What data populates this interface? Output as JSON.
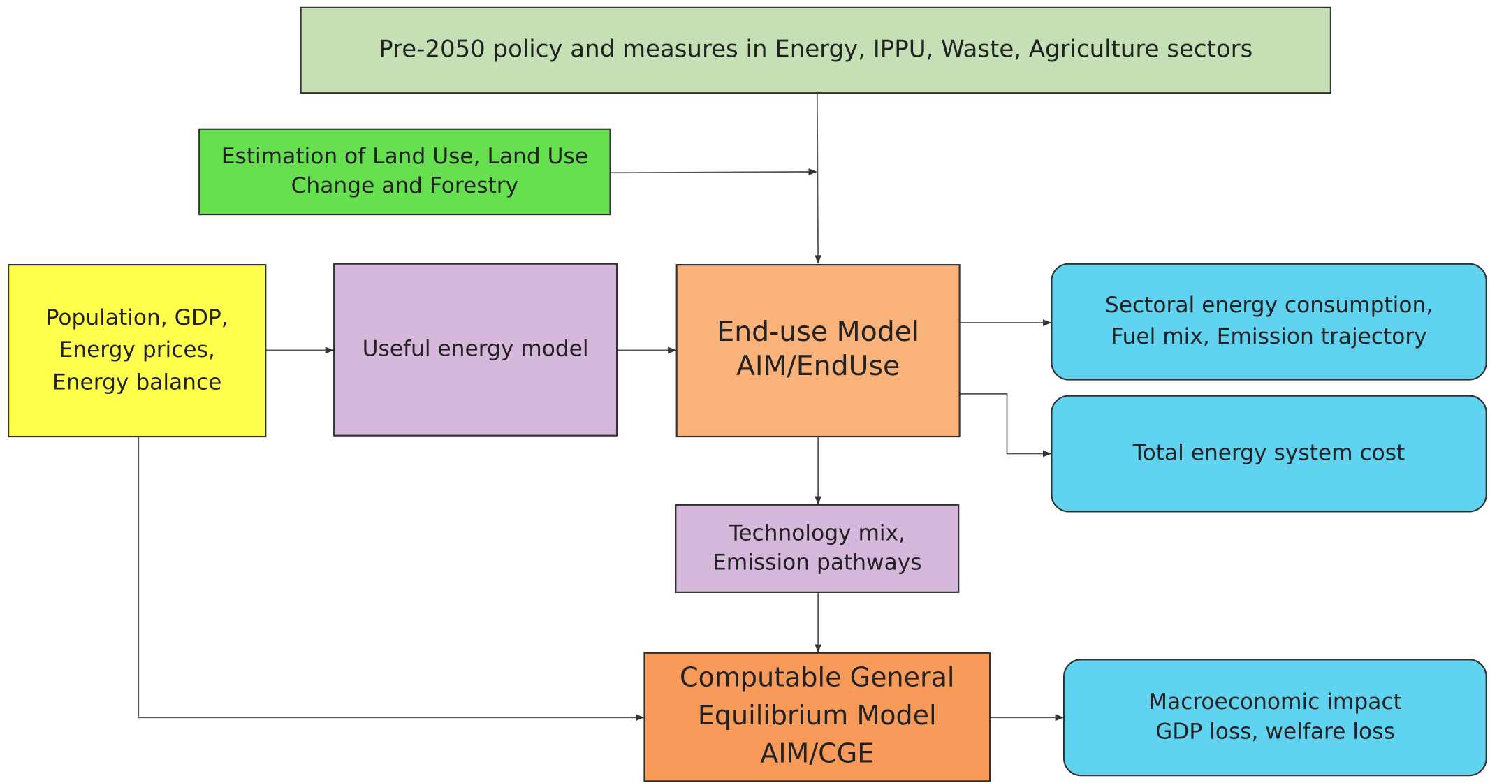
{
  "nodes": [
    {
      "lines": [
        "Pre-2050 policy and measures in Energy, IPPU, Waste, Agriculture sectors"
      ]
    },
    {
      "lines": [
        "Estimation of Land Use, Land Use",
        "Change and Forestry"
      ]
    },
    {
      "lines": [
        "Population, GDP,",
        "Energy prices,",
        "Energy balance"
      ]
    },
    {
      "lines": [
        "Useful energy model"
      ]
    },
    {
      "lines": [
        "End-use Model",
        "AIM/EndUse"
      ]
    },
    {
      "lines": [
        "Sectoral energy consumption,",
        "Fuel mix, Emission trajectory"
      ]
    },
    {
      "lines": [
        "Total energy system cost"
      ]
    },
    {
      "lines": [
        "Technology mix,",
        "Emission pathways"
      ]
    },
    {
      "lines": [
        "Computable General",
        "Equilibrium Model",
        "AIM/CGE"
      ]
    },
    {
      "lines": [
        "Macroeconomic impact",
        "GDP loss, welfare loss"
      ]
    }
  ]
}
